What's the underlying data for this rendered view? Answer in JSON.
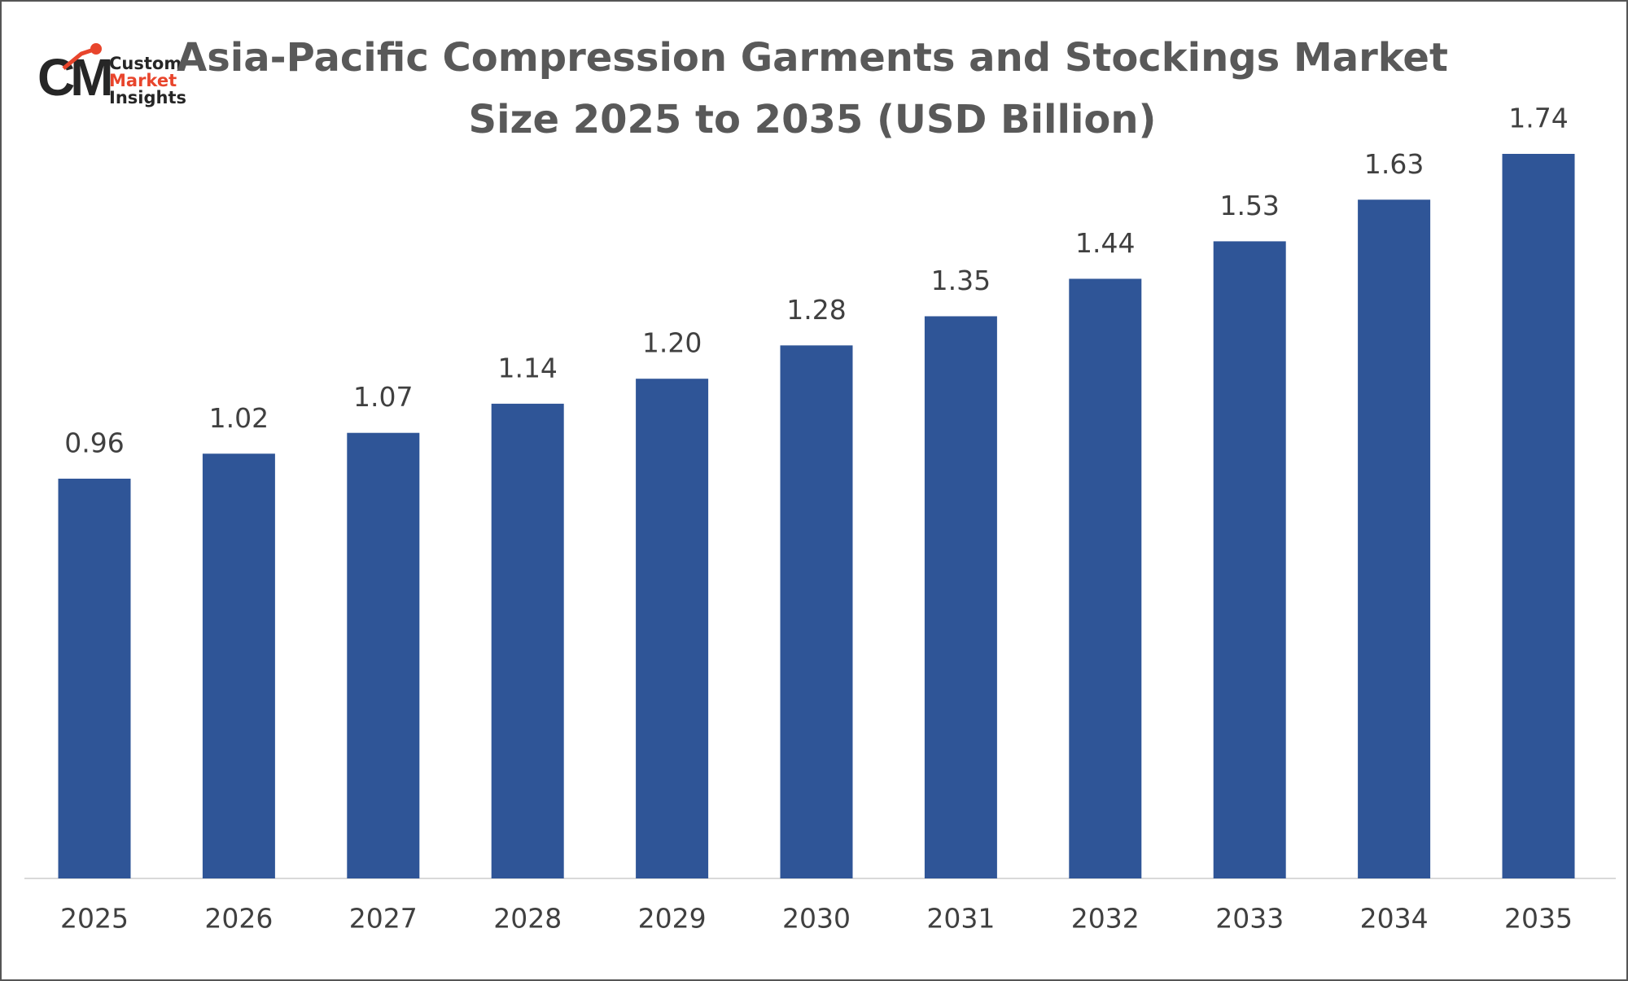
{
  "logo": {
    "mark": "CM",
    "lines": [
      "Custom",
      "Market",
      "Insights"
    ]
  },
  "chart_data": {
    "type": "bar",
    "title": [
      "Asia-Pacific Compression Garments and Stockings Market",
      "Size 2025 to 2035 (USD Billion)"
    ],
    "categories": [
      "2025",
      "2026",
      "2027",
      "2028",
      "2029",
      "2030",
      "2031",
      "2032",
      "2033",
      "2034",
      "2035"
    ],
    "values": [
      0.96,
      1.02,
      1.07,
      1.14,
      1.2,
      1.28,
      1.35,
      1.44,
      1.53,
      1.63,
      1.74
    ],
    "value_labels": [
      "0.96",
      "1.02",
      "1.07",
      "1.14",
      "1.20",
      "1.28",
      "1.35",
      "1.44",
      "1.53",
      "1.63",
      "1.74"
    ],
    "color": "#2f5597"
  }
}
